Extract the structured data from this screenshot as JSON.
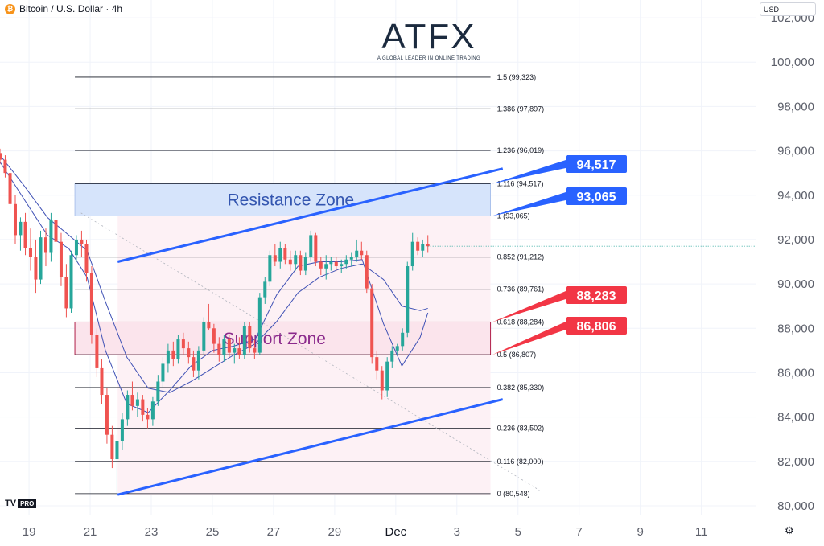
{
  "header": {
    "coin_glyph": "₿",
    "title": "Bitcoin / U.S. Dollar · 4h"
  },
  "currency": "USD",
  "logo": {
    "name": "ATFX",
    "tagline": "A GLOBAL LEADER IN ONLINE TRADING"
  },
  "tv_logo": {
    "mark": "TV",
    "badge": "PRO"
  },
  "colors": {
    "up": "#26a69a",
    "down": "#ef5350",
    "trend": "#2962ff",
    "resistance_fill": "#d6e4fb",
    "support_fill": "#fbe4ec",
    "support_border": "#b0204a",
    "tag_blue": "#2962ff",
    "tag_red": "#f23645",
    "ma": "#3f51b5"
  },
  "chart_data": {
    "type": "candlestick",
    "title": "Bitcoin / U.S. Dollar · 4h",
    "y_ticks": [
      "102,000",
      "100,000",
      "98,000",
      "96,000",
      "94,000",
      "92,000",
      "90,000",
      "88,000",
      "86,000",
      "84,000",
      "82,000",
      "80,000"
    ],
    "y_tick_values": [
      102000,
      100000,
      98000,
      96000,
      94000,
      92000,
      90000,
      88000,
      86000,
      84000,
      82000,
      80000
    ],
    "x_ticks": [
      "19",
      "21",
      "23",
      "25",
      "27",
      "29",
      "Dec",
      "3",
      "5",
      "7",
      "9",
      "11"
    ],
    "x_tick_days": [
      19,
      21,
      23,
      25,
      27,
      29,
      31,
      33,
      35,
      37,
      39,
      41
    ],
    "ylim": [
      79600,
      102800
    ],
    "xlim_days": [
      18.05,
      42.8
    ],
    "zones": {
      "resistance": {
        "label": "Resistance Zone",
        "low": 93065,
        "high": 94517
      },
      "support": {
        "label": "Support Zone",
        "low": 86806,
        "high": 88283
      }
    },
    "price_tags": [
      {
        "text": "94,517",
        "value": 94517,
        "color": "blue"
      },
      {
        "text": "93,065",
        "value": 93065,
        "color": "blue"
      },
      {
        "text": "88,283",
        "value": 88283,
        "color": "red"
      },
      {
        "text": "86,806",
        "value": 86806,
        "color": "red"
      }
    ],
    "fibonacci": [
      {
        "label": "1.5 (99,323)",
        "value": 99323
      },
      {
        "label": "1.386 (97,897)",
        "value": 97897
      },
      {
        "label": "1.236 (96,019)",
        "value": 96019
      },
      {
        "label": "1.116 (94,517)",
        "value": 94517
      },
      {
        "label": "1 (93,065)",
        "value": 93065
      },
      {
        "label": "0.852 (91,212)",
        "value": 91212
      },
      {
        "label": "0.736 (89,761)",
        "value": 89761
      },
      {
        "label": "0.618 (88,284)",
        "value": 88284
      },
      {
        "label": "0.5 (86,807)",
        "value": 86807
      },
      {
        "label": "0.382 (85,330)",
        "value": 85330
      },
      {
        "label": "0.236 (83,502)",
        "value": 83502
      },
      {
        "label": "0.116 (82,000)",
        "value": 82000
      },
      {
        "label": "0 (80,548)",
        "value": 80548
      }
    ],
    "fib_range_days": [
      20.5,
      34.1
    ],
    "channel": {
      "upper": [
        [
          21.9,
          91000
        ],
        [
          34.5,
          95200
        ]
      ],
      "lower": [
        [
          21.9,
          80500
        ],
        [
          34.5,
          84800
        ]
      ]
    },
    "current_price": 91700,
    "candles": [
      [
        18.05,
        95900,
        96100,
        95400,
        95600
      ],
      [
        18.22,
        95600,
        95800,
        94800,
        95000
      ],
      [
        18.38,
        95000,
        95200,
        93200,
        93600
      ],
      [
        18.55,
        93600,
        94000,
        91800,
        92200
      ],
      [
        18.72,
        92200,
        93000,
        91500,
        92800
      ],
      [
        18.88,
        92800,
        93200,
        91300,
        91600
      ],
      [
        19.05,
        91600,
        92500,
        90600,
        91200
      ],
      [
        19.22,
        91200,
        92000,
        89600,
        90200
      ],
      [
        19.38,
        90200,
        92400,
        90000,
        92100
      ],
      [
        19.55,
        92100,
        92500,
        90800,
        91400
      ],
      [
        19.72,
        91400,
        93200,
        91000,
        92900
      ],
      [
        19.88,
        92900,
        93000,
        91600,
        91900
      ],
      [
        20.05,
        91900,
        92300,
        89900,
        90300
      ],
      [
        20.22,
        90300,
        90900,
        88500,
        88900
      ],
      [
        20.38,
        88900,
        91500,
        88700,
        91300
      ],
      [
        20.55,
        91300,
        92200,
        91000,
        92000
      ],
      [
        20.72,
        92000,
        92400,
        91200,
        91800
      ],
      [
        20.88,
        91800,
        92000,
        90100,
        90500
      ],
      [
        21.05,
        90500,
        90800,
        87300,
        87700
      ],
      [
        21.22,
        87700,
        88000,
        85800,
        86200
      ],
      [
        21.38,
        86200,
        86600,
        84600,
        85000
      ],
      [
        21.55,
        85000,
        85300,
        82800,
        83200
      ],
      [
        21.72,
        83200,
        83600,
        81700,
        82100
      ],
      [
        21.88,
        82100,
        83200,
        80500,
        82900
      ],
      [
        22.05,
        82900,
        84200,
        82500,
        83900
      ],
      [
        22.22,
        83900,
        85200,
        83600,
        85000
      ],
      [
        22.38,
        85000,
        85600,
        84300,
        84500
      ],
      [
        22.55,
        84500,
        85100,
        84000,
        84800
      ],
      [
        22.72,
        84800,
        85000,
        83800,
        84100
      ],
      [
        22.88,
        84100,
        84400,
        83500,
        83900
      ],
      [
        23.05,
        83900,
        84900,
        83600,
        84700
      ],
      [
        23.22,
        84700,
        85900,
        84500,
        85600
      ],
      [
        23.38,
        85600,
        86700,
        85300,
        86400
      ],
      [
        23.55,
        86400,
        87300,
        86000,
        87000
      ],
      [
        23.72,
        87000,
        87400,
        86300,
        86600
      ],
      [
        23.88,
        86600,
        87700,
        86400,
        87500
      ],
      [
        24.05,
        87500,
        87800,
        86800,
        87100
      ],
      [
        24.22,
        87100,
        87400,
        86400,
        86700
      ],
      [
        24.38,
        86700,
        87000,
        85800,
        86100
      ],
      [
        24.55,
        86100,
        87200,
        85700,
        87000
      ],
      [
        24.72,
        87000,
        88500,
        86800,
        88300
      ],
      [
        24.88,
        88300,
        89100,
        87900,
        88000
      ],
      [
        25.05,
        88000,
        88200,
        86900,
        87300
      ],
      [
        25.22,
        87300,
        87600,
        86500,
        86800
      ],
      [
        25.38,
        86800,
        87700,
        86500,
        87500
      ],
      [
        25.55,
        87500,
        87700,
        86700,
        86900
      ],
      [
        25.72,
        86900,
        87300,
        86400,
        87100
      ],
      [
        25.88,
        87100,
        87600,
        86600,
        86800
      ],
      [
        26.05,
        86800,
        88300,
        86600,
        88100
      ],
      [
        26.22,
        88100,
        88300,
        86900,
        87100
      ],
      [
        26.38,
        87100,
        87500,
        86600,
        86900
      ],
      [
        26.55,
        86900,
        89600,
        86800,
        89400
      ],
      [
        26.72,
        89400,
        90300,
        89100,
        90100
      ],
      [
        26.88,
        90100,
        91500,
        89900,
        91300
      ],
      [
        27.05,
        91300,
        91800,
        90800,
        91000
      ],
      [
        27.22,
        91000,
        91900,
        90700,
        91600
      ],
      [
        27.38,
        91600,
        91800,
        90900,
        91100
      ],
      [
        27.55,
        91100,
        91500,
        90600,
        90900
      ],
      [
        27.72,
        90900,
        91500,
        90600,
        91300
      ],
      [
        27.88,
        91300,
        91500,
        90400,
        90600
      ],
      [
        28.05,
        90600,
        91400,
        90400,
        91200
      ],
      [
        28.22,
        91200,
        92400,
        91000,
        92200
      ],
      [
        28.38,
        92200,
        92300,
        90800,
        91000
      ],
      [
        28.55,
        91000,
        91200,
        90400,
        90700
      ],
      [
        28.72,
        90700,
        91300,
        90200,
        90900
      ],
      [
        28.88,
        90900,
        91200,
        90600,
        91000
      ],
      [
        29.05,
        91000,
        91200,
        90600,
        90800
      ],
      [
        29.22,
        90800,
        91100,
        90500,
        90900
      ],
      [
        29.38,
        90900,
        91300,
        90700,
        91100
      ],
      [
        29.55,
        91100,
        91400,
        90800,
        91200
      ],
      [
        29.72,
        91200,
        92000,
        91000,
        91500
      ],
      [
        29.88,
        91500,
        91900,
        91100,
        91300
      ],
      [
        30.05,
        91300,
        91500,
        89600,
        89800
      ],
      [
        30.22,
        89800,
        90000,
        86400,
        86700
      ],
      [
        30.38,
        86700,
        87000,
        85700,
        86100
      ],
      [
        30.55,
        86100,
        86300,
        84800,
        85200
      ],
      [
        30.72,
        85200,
        86700,
        84900,
        86500
      ],
      [
        30.88,
        86500,
        87200,
        86200,
        87000
      ],
      [
        31.05,
        87000,
        87300,
        86800,
        87200
      ],
      [
        31.22,
        87200,
        88000,
        87000,
        87800
      ],
      [
        31.38,
        87800,
        91000,
        87600,
        90800
      ],
      [
        31.55,
        90800,
        92300,
        90600,
        91900
      ],
      [
        31.72,
        91900,
        92100,
        91300,
        91500
      ],
      [
        31.88,
        91500,
        92000,
        91200,
        91800
      ],
      [
        32.05,
        91800,
        92200,
        91400,
        91700
      ]
    ],
    "moving_averages": [
      [
        [
          18.05,
          95500
        ],
        [
          18.8,
          93900
        ],
        [
          19.6,
          92200
        ],
        [
          20.3,
          91600
        ],
        [
          20.9,
          90300
        ],
        [
          21.5,
          87000
        ],
        [
          22.2,
          84600
        ],
        [
          22.9,
          84200
        ],
        [
          23.6,
          85200
        ],
        [
          24.3,
          86300
        ],
        [
          25.0,
          87000
        ],
        [
          25.7,
          87200
        ],
        [
          26.4,
          87500
        ],
        [
          27.1,
          89500
        ],
        [
          27.8,
          90800
        ],
        [
          28.5,
          91000
        ],
        [
          29.2,
          91000
        ],
        [
          29.9,
          91100
        ],
        [
          30.6,
          88200
        ],
        [
          31.2,
          86300
        ],
        [
          31.8,
          87600
        ],
        [
          32.05,
          88700
        ]
      ],
      [
        [
          18.05,
          95800
        ],
        [
          18.8,
          94500
        ],
        [
          19.6,
          93000
        ],
        [
          20.3,
          92200
        ],
        [
          20.9,
          91500
        ],
        [
          21.5,
          89200
        ],
        [
          22.2,
          86700
        ],
        [
          22.9,
          85300
        ],
        [
          23.6,
          85100
        ],
        [
          24.3,
          85600
        ],
        [
          25.0,
          86200
        ],
        [
          25.7,
          86800
        ],
        [
          26.4,
          87300
        ],
        [
          27.1,
          88300
        ],
        [
          27.8,
          89600
        ],
        [
          28.5,
          90300
        ],
        [
          29.2,
          90700
        ],
        [
          29.9,
          90900
        ],
        [
          30.6,
          90200
        ],
        [
          31.2,
          89000
        ],
        [
          31.8,
          88800
        ],
        [
          32.05,
          88900
        ]
      ]
    ]
  }
}
